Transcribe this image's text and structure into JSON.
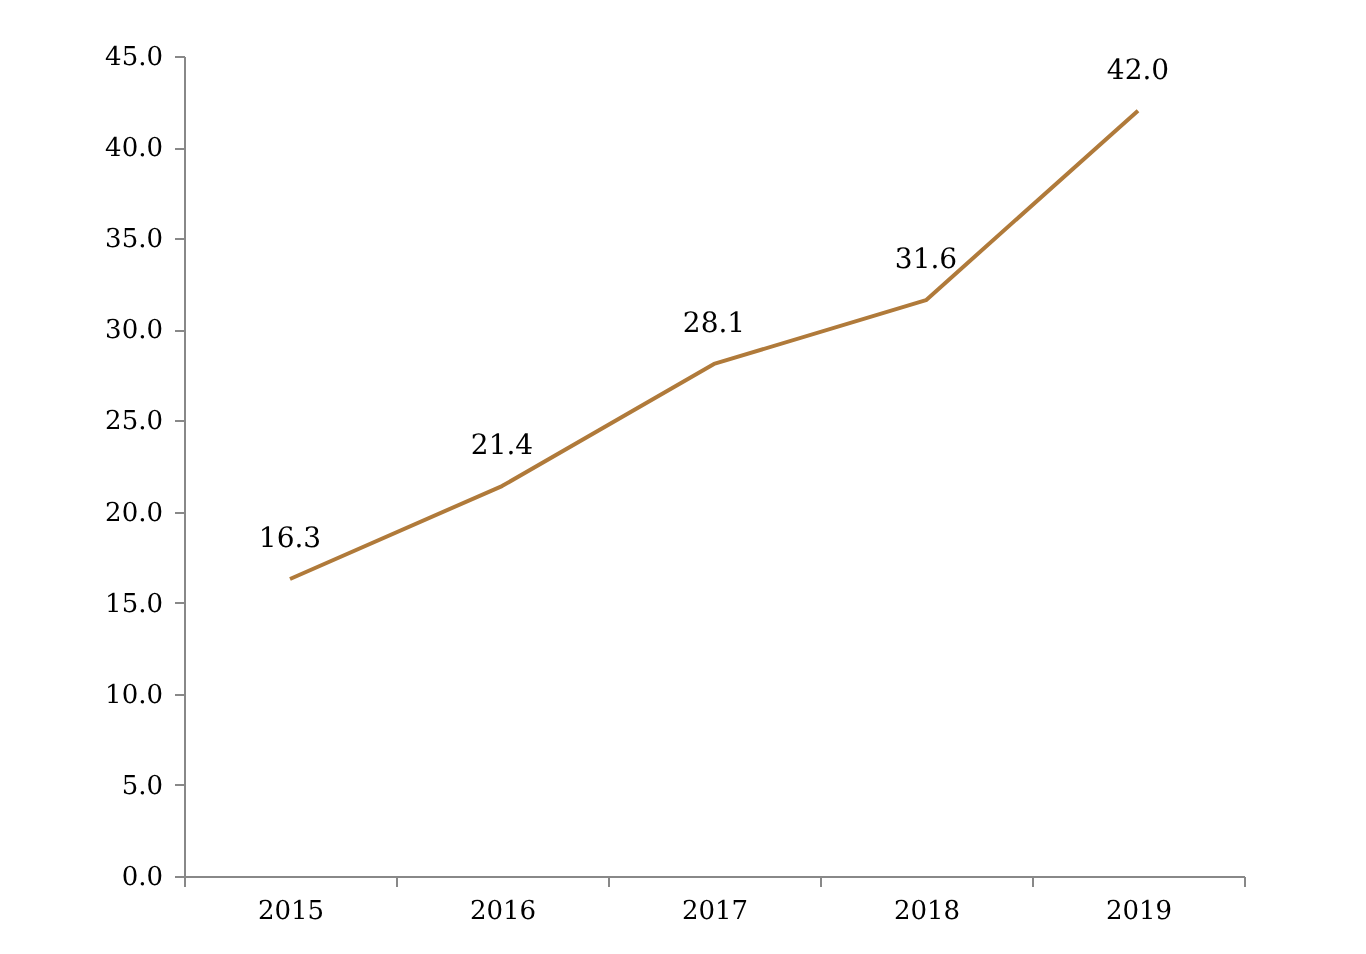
{
  "chart_data": {
    "type": "line",
    "categories": [
      "2015",
      "2016",
      "2017",
      "2018",
      "2019"
    ],
    "series": [
      {
        "color": "#b07a3a",
        "values": [
          16.3,
          21.4,
          28.1,
          31.6,
          42.0
        ],
        "value_labels": [
          "16.3",
          "21.4",
          "28.1",
          "31.6",
          "42.0"
        ]
      }
    ],
    "ylim": [
      0,
      45
    ],
    "yticks": [
      {
        "value": 0,
        "label": "0.0"
      },
      {
        "value": 5,
        "label": "5.0"
      },
      {
        "value": 10,
        "label": "10.0"
      },
      {
        "value": 15,
        "label": "15.0"
      },
      {
        "value": 20,
        "label": "20.0"
      },
      {
        "value": 25,
        "label": "25.0"
      },
      {
        "value": 30,
        "label": "30.0"
      },
      {
        "value": 35,
        "label": "35.0"
      },
      {
        "value": 40,
        "label": "40.0"
      },
      {
        "value": 45,
        "label": "45.0"
      }
    ],
    "grid": false,
    "legend": false
  }
}
